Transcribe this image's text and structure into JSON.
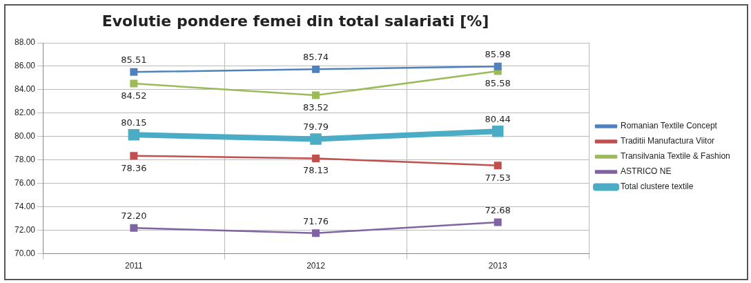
{
  "chart_data": {
    "type": "line",
    "title": "Evolutie pondere femei din total salariati [%]",
    "categories": [
      "2011",
      "2012",
      "2013"
    ],
    "series": [
      {
        "name": "Romanian Textile Concept",
        "color": "#4f81bd",
        "values": [
          85.51,
          85.74,
          85.98
        ],
        "value_labels": [
          "85.51",
          "85.74",
          "85.98"
        ]
      },
      {
        "name": "Traditii Manufactura Viitor",
        "color": "#c0504d",
        "values": [
          78.36,
          78.13,
          77.53
        ],
        "value_labels": [
          "78.36",
          "78.13",
          "77.53"
        ]
      },
      {
        "name": "Transilvania Textile & Fashion",
        "color": "#9bbb59",
        "values": [
          84.52,
          83.52,
          85.58
        ],
        "value_labels": [
          "84.52",
          "83.52",
          "85.58"
        ]
      },
      {
        "name": "ASTRICO NE",
        "color": "#8064a2",
        "values": [
          72.2,
          71.76,
          72.68
        ],
        "value_labels": [
          "72.20",
          "71.76",
          "72.68"
        ]
      },
      {
        "name": "Total clustere textile",
        "color": "#4bacc6",
        "values": [
          80.15,
          79.79,
          80.44
        ],
        "value_labels": [
          "80.15",
          "79.79",
          "80.44"
        ]
      }
    ],
    "ylim": [
      70,
      88
    ],
    "yticks": [
      {
        "value": 70,
        "label": "70.00"
      },
      {
        "value": 72,
        "label": "72.00"
      },
      {
        "value": 74,
        "label": "74.00"
      },
      {
        "value": 76,
        "label": "76.00"
      },
      {
        "value": 78,
        "label": "78.00"
      },
      {
        "value": 80,
        "label": "80.00"
      },
      {
        "value": 82,
        "label": "82.00"
      },
      {
        "value": 84,
        "label": "84.00"
      },
      {
        "value": 86,
        "label": "86.00"
      },
      {
        "value": 88,
        "label": "88.00"
      }
    ],
    "grid": true,
    "legend": "right",
    "marker": "square",
    "line_style": "solid"
  }
}
